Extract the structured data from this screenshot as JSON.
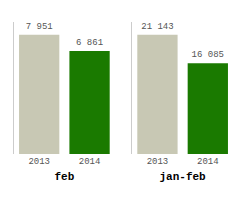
{
  "chart_data": [
    {
      "type": "bar",
      "xlabel": "feb",
      "categories": [
        "2013",
        "2014"
      ],
      "values": [
        7951,
        6861
      ],
      "value_labels": [
        "7 951",
        "6 861"
      ],
      "colors": [
        "#c8c8b4",
        "#1a7a00"
      ],
      "ylim": [
        0,
        8800
      ],
      "data_labels": true,
      "tick_labels": "x",
      "grid": false
    },
    {
      "type": "bar",
      "xlabel": "jan-feb",
      "categories": [
        "2013",
        "2014"
      ],
      "values": [
        21143,
        16085
      ],
      "value_labels": [
        "21 143",
        "16 085"
      ],
      "colors": [
        "#c8c8b4",
        "#1a7a00"
      ],
      "ylim": [
        0,
        23400
      ],
      "data_labels": true,
      "tick_labels": "x",
      "grid": false
    }
  ]
}
